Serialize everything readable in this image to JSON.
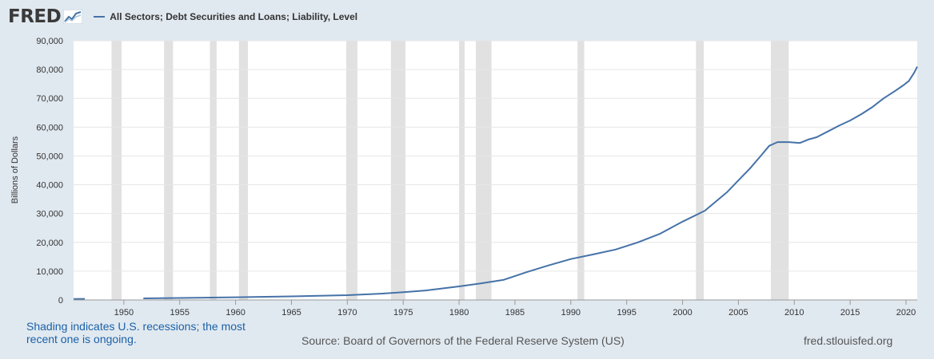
{
  "header": {
    "logo_text": "FRED",
    "logo_icon": "chart-line-icon",
    "legend_label": "All Sectors; Debt Securities and Loans; Liability, Level"
  },
  "colors": {
    "line": "#4572a7",
    "recession": "#e1e1e1",
    "grid": "#e6e6e6",
    "background": "#e1e9f0",
    "plot": "#ffffff"
  },
  "chart_data": {
    "type": "line",
    "title": "",
    "xlabel": "",
    "ylabel": "Billions of Dollars",
    "xlim": [
      1945.5,
      2021.0
    ],
    "ylim": [
      0,
      90000
    ],
    "grid": true,
    "yticks": [
      0,
      10000,
      20000,
      30000,
      40000,
      50000,
      60000,
      70000,
      80000,
      90000
    ],
    "ytick_labels": [
      "0",
      "10,000",
      "20,000",
      "30,000",
      "40,000",
      "50,000",
      "60,000",
      "70,000",
      "80,000",
      "90,000"
    ],
    "xticks": [
      1950,
      1955,
      1960,
      1965,
      1970,
      1975,
      1980,
      1985,
      1990,
      1995,
      2000,
      2005,
      2010,
      2015,
      2020
    ],
    "xtick_labels": [
      "1950",
      "1955",
      "1960",
      "1965",
      "1970",
      "1975",
      "1980",
      "1985",
      "1990",
      "1995",
      "2000",
      "2005",
      "2010",
      "2015",
      "2020"
    ],
    "recessions": [
      [
        1948.9,
        1949.8
      ],
      [
        1953.6,
        1954.4
      ],
      [
        1957.7,
        1958.3
      ],
      [
        1960.3,
        1961.1
      ],
      [
        1969.9,
        1970.9
      ],
      [
        1973.9,
        1975.2
      ],
      [
        1980.0,
        1980.5
      ],
      [
        1981.5,
        1982.9
      ],
      [
        1990.6,
        1991.2
      ],
      [
        2001.2,
        2001.9
      ],
      [
        2007.9,
        2009.5
      ]
    ],
    "series": [
      {
        "name": "All Sectors; Debt Securities and Loans; Liability, Level",
        "segments": [
          {
            "x": [
              1945.5,
              1946.5
            ],
            "y": [
              350,
              400
            ]
          },
          {
            "x": [
              1951.75,
              1955,
              1960,
              1965,
              1970,
              1973,
              1975,
              1977,
              1980,
              1982,
              1984,
              1986,
              1988,
              1990,
              1992,
              1994,
              1996,
              1998,
              2000,
              2002,
              2004,
              2005,
              2006,
              2007,
              2007.75,
              2008.5,
              2009.5,
              2010.5,
              2011.25,
              2012,
              2013,
              2014,
              2015,
              2016,
              2017,
              2018,
              2019,
              2019.75,
              2020.25,
              2020.75,
              2021.0
            ],
            "y": [
              550,
              700,
              950,
              1250,
              1650,
              2200,
              2700,
              3300,
              4700,
              5800,
              7000,
              9600,
              12000,
              14200,
              15800,
              17500,
              20000,
              23000,
              27200,
              31000,
              37500,
              41500,
              45500,
              50000,
              53500,
              54800,
              54800,
              54500,
              55700,
              56500,
              58500,
              60500,
              62300,
              64500,
              67000,
              70000,
              72500,
              74500,
              76000,
              79000,
              81000
            ]
          }
        ]
      }
    ]
  },
  "footer": {
    "recession_note": "Shading indicates U.S. recessions; the most recent one is ongoing.",
    "source": "Source: Board of Governors of the Federal Reserve System (US)",
    "site": "fred.stlouisfed.org"
  }
}
